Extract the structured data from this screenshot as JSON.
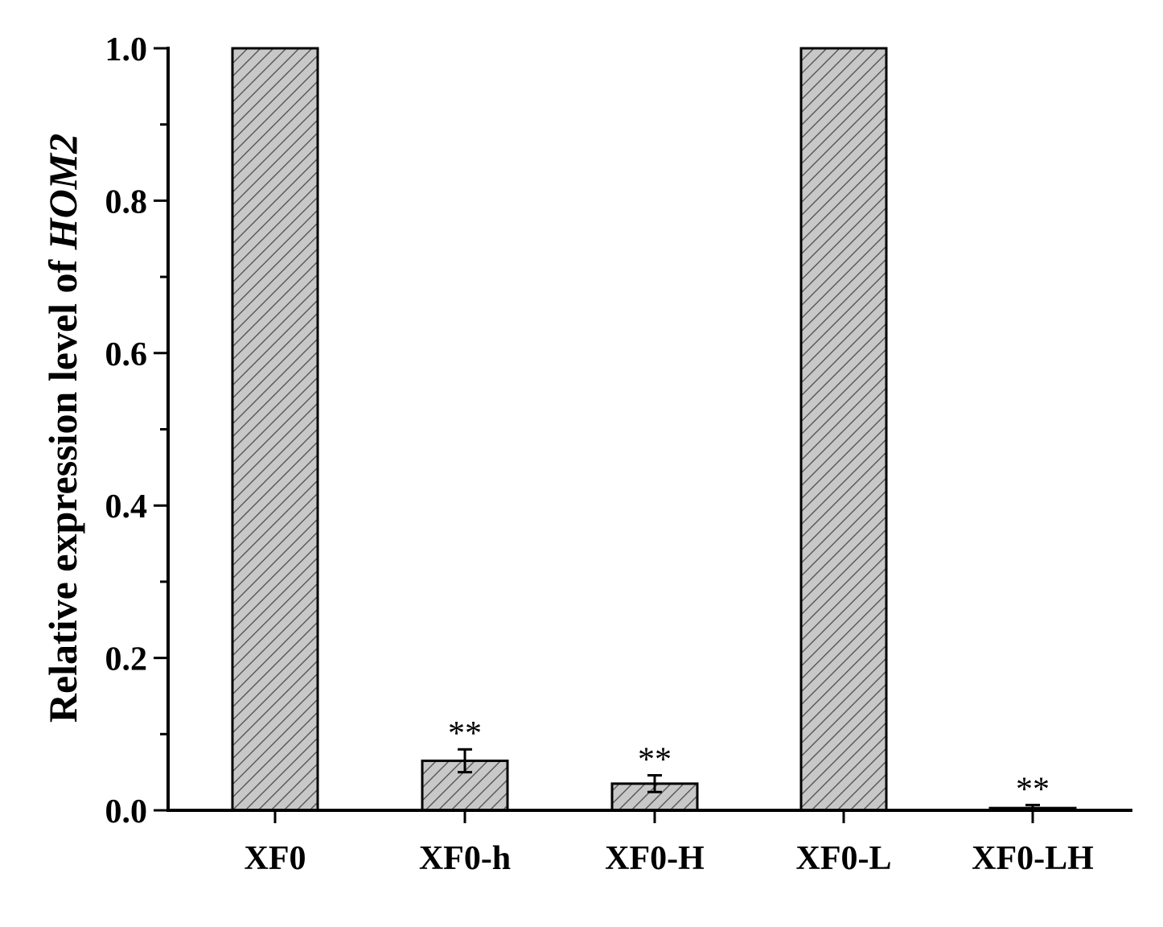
{
  "chart_data": {
    "type": "bar",
    "categories": [
      "XF0",
      "XF0-h",
      "XF0-H",
      "XF0-L",
      "XF0-LH"
    ],
    "values": [
      1.0,
      0.065,
      0.035,
      1.0,
      0.003
    ],
    "errors": [
      0,
      0.015,
      0.011,
      0,
      0.004
    ],
    "significance": [
      "",
      "**",
      "**",
      "",
      "**"
    ],
    "ylabel": {
      "prefix": "Relative expression level of ",
      "gene": "HOM2"
    },
    "ylim": [
      0,
      1.0
    ],
    "yticks": [
      0.0,
      0.2,
      0.4,
      0.6,
      0.8,
      1.0
    ],
    "ytick_labels": [
      "0.0",
      "0.2",
      "0.4",
      "0.6",
      "0.8",
      "1.0"
    ],
    "bar_fill": "#c8c8c8",
    "hatch": "diagonal",
    "grid": false,
    "legend": "none"
  }
}
